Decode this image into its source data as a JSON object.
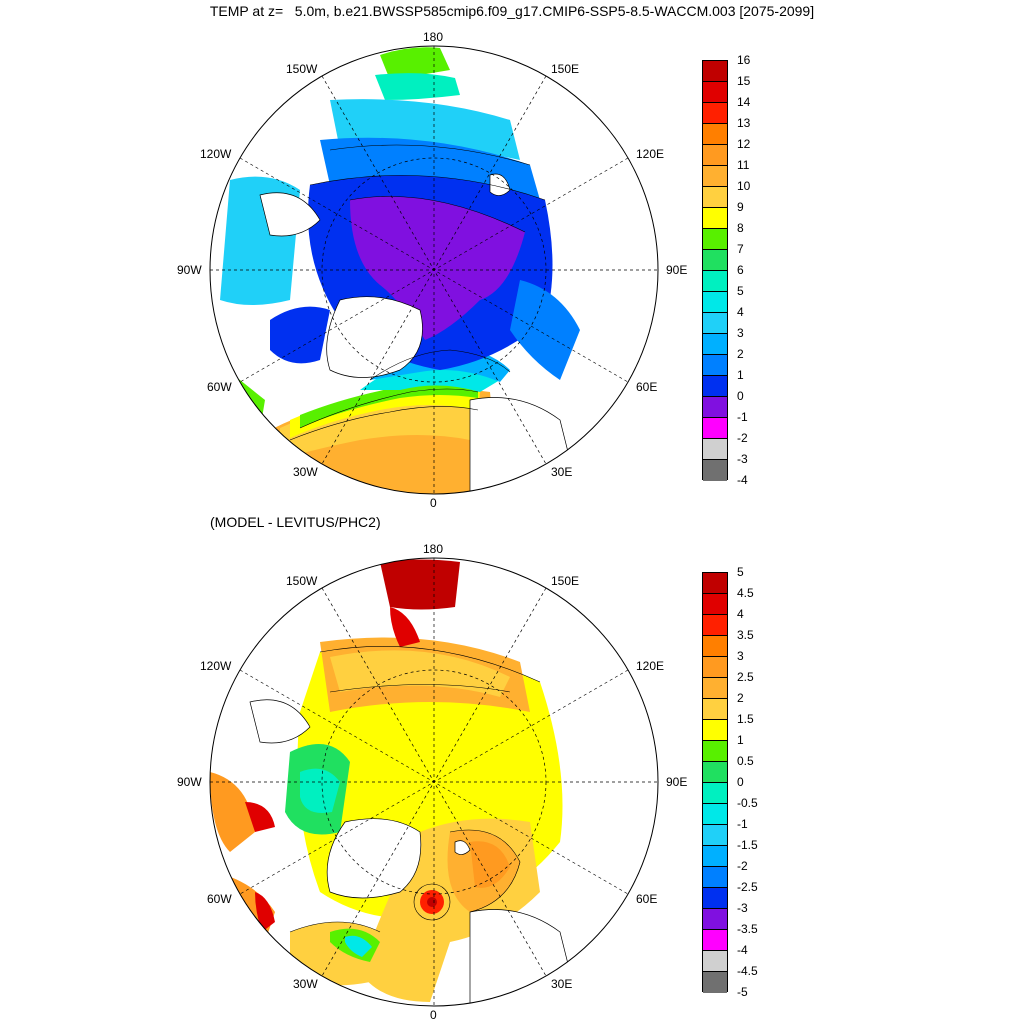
{
  "title": "TEMP at z=   5.0m, b.e21.BWSSP585cmip6.f09_g17.CMIP6-SSP5-8.5-WACCM.003 [2075-2099]",
  "subtitle": "(MODEL - LEVITUS/PHC2)",
  "longitude_labels": [
    "180",
    "150E",
    "120E",
    "90E",
    "60E",
    "30E",
    "0",
    "30W",
    "60W",
    "90W",
    "120W",
    "150W"
  ],
  "top_panel": {
    "colorbar_labels": [
      "16",
      "15",
      "14",
      "13",
      "12",
      "11",
      "10",
      "9",
      "8",
      "7",
      "6",
      "5",
      "4",
      "3",
      "2",
      "1",
      "0",
      "-1",
      "-2",
      "-3",
      "-4"
    ],
    "colorbar_colors": [
      "#c00000",
      "#e00000",
      "#ff2000",
      "#ff7f00",
      "#ff9a20",
      "#ffb030",
      "#ffd040",
      "#ffff00",
      "#58f000",
      "#20e060",
      "#00f0c0",
      "#00e8e8",
      "#20d0f8",
      "#00b0ff",
      "#0080ff",
      "#0030f0",
      "#8010e0",
      "#ff00ff",
      "#d0d0d0",
      "#707070"
    ]
  },
  "bottom_panel": {
    "colorbar_labels": [
      "5",
      "4.5",
      "4",
      "3.5",
      "3",
      "2.5",
      "2",
      "1.5",
      "1",
      "0.5",
      "0",
      "-0.5",
      "-1",
      "-1.5",
      "-2",
      "-2.5",
      "-3",
      "-3.5",
      "-4",
      "-4.5",
      "-5"
    ],
    "colorbar_colors": [
      "#c00000",
      "#e00000",
      "#ff2000",
      "#ff7f00",
      "#ff9a20",
      "#ffb030",
      "#ffd040",
      "#ffff00",
      "#58f000",
      "#20e060",
      "#00f0c0",
      "#00e8e8",
      "#20d0f8",
      "#00b0ff",
      "#0080ff",
      "#0030f0",
      "#8010e0",
      "#ff00ff",
      "#d0d0d0",
      "#707070"
    ]
  }
}
